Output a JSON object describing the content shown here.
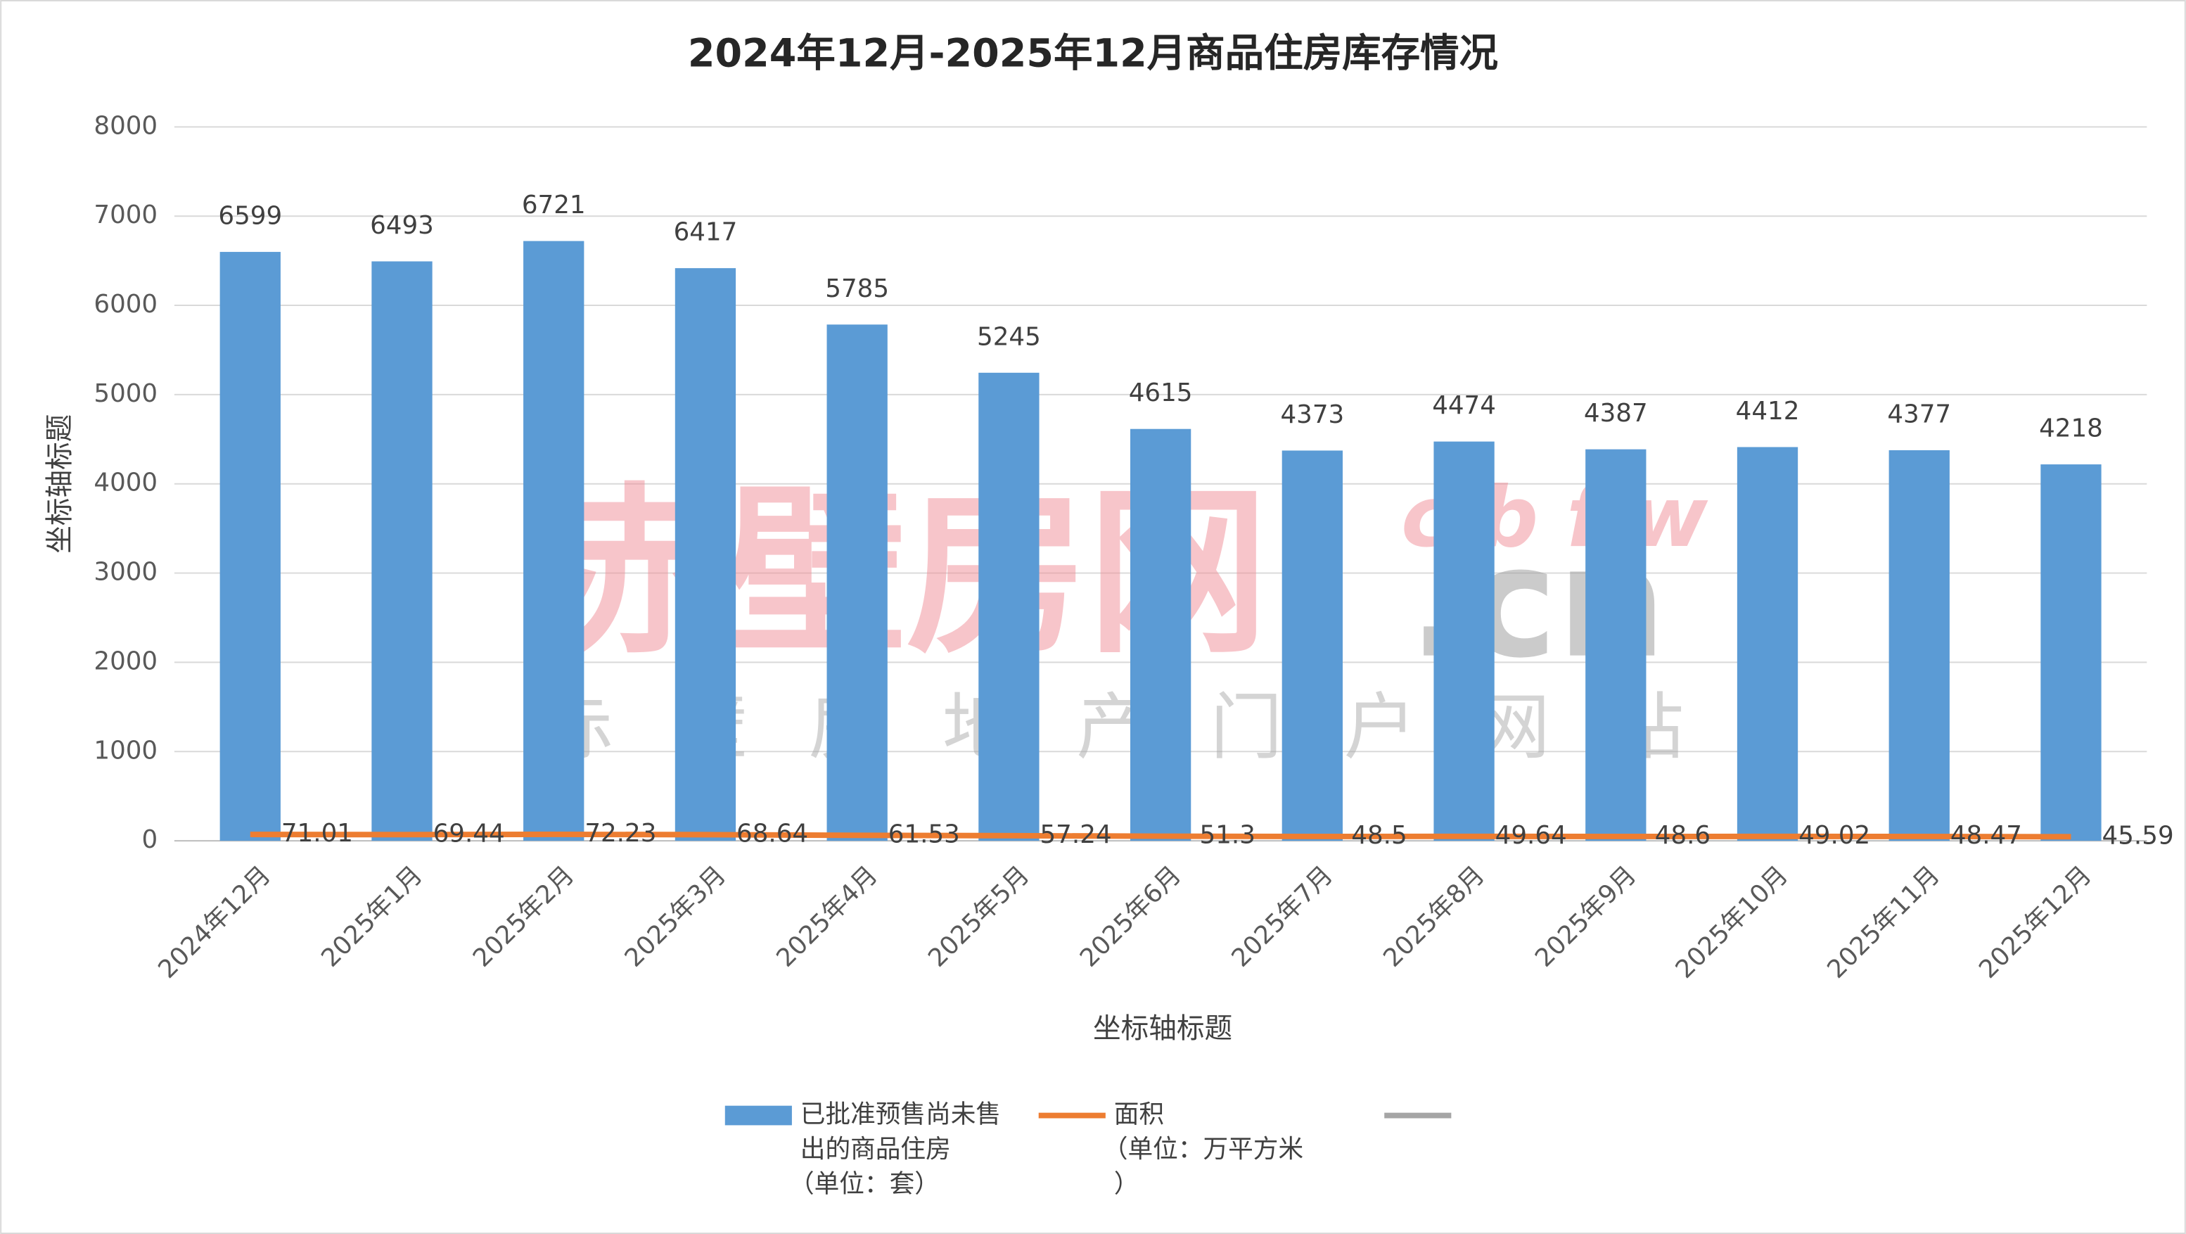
{
  "chart_data": {
    "type": "bar",
    "title": "2024年12月-2025年12月商品住房库存情况",
    "x_label": "坐标轴标题",
    "y_label": "坐标轴标题",
    "categories": [
      "2024年12月",
      "2025年1月",
      "2025年2月",
      "2025年3月",
      "2025年4月",
      "2025年5月",
      "2025年6月",
      "2025年7月",
      "2025年8月",
      "2025年9月",
      "2025年10月",
      "2025年11月",
      "2025年12月"
    ],
    "series": [
      {
        "name": "已批准预售尚未售出的商品住房（单位：套）",
        "type": "bar",
        "color": "#5b9bd5",
        "values": [
          6599,
          6493,
          6721,
          6417,
          5785,
          5245,
          4615,
          4373,
          4474,
          4387,
          4412,
          4377,
          4218
        ]
      },
      {
        "name": "面积（单位：万平方米）",
        "type": "line",
        "color": "#ed7d31",
        "values": [
          71.01,
          69.44,
          72.23,
          68.64,
          61.53,
          57.24,
          51.3,
          48.5,
          49.64,
          48.6,
          49.02,
          48.47,
          45.59
        ]
      }
    ],
    "ylim": [
      0,
      8000
    ],
    "yticks": [
      0,
      1000,
      2000,
      3000,
      4000,
      5000,
      6000,
      7000,
      8000
    ],
    "grid": true,
    "legend": "bottom",
    "watermark": {
      "main": "赤壁房网",
      "latin": "cbfw",
      "domain": ".cn",
      "sub": "赤壁房地产门户网站"
    }
  }
}
